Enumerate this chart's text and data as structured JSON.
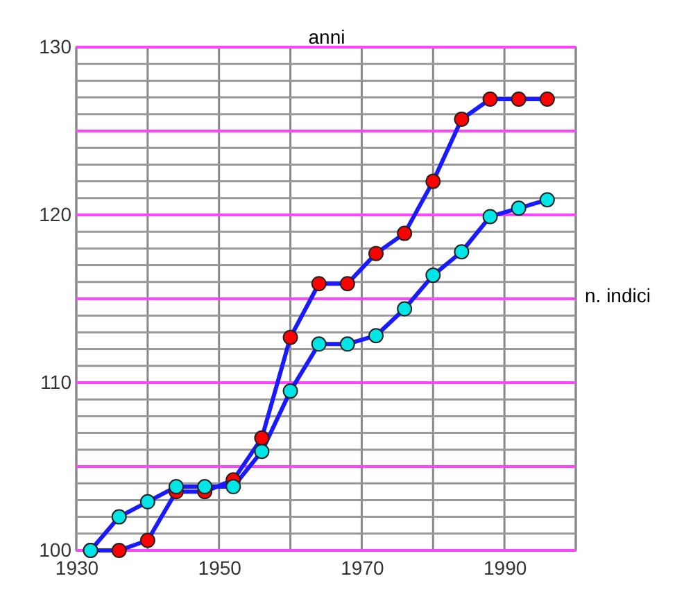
{
  "chart_data": {
    "type": "line",
    "xlabel": "anni",
    "ylabel": "n. indici",
    "x": [
      1932,
      1936,
      1940,
      1944,
      1948,
      1952,
      1956,
      1960,
      1964,
      1968,
      1972,
      1976,
      1980,
      1984,
      1988,
      1992,
      1996
    ],
    "series": [
      {
        "color": "#ff0000",
        "values": [
          100,
          100,
          100.6,
          103.5,
          103.5,
          104.2,
          106.7,
          112.7,
          115.9,
          115.9,
          117.7,
          118.9,
          122,
          125.7,
          126.9,
          126.9,
          126.9
        ]
      },
      {
        "color": "#00e5e5",
        "values": [
          100,
          102,
          102.9,
          103.8,
          103.8,
          103.8,
          105.9,
          109.5,
          112.3,
          112.3,
          112.8,
          114.4,
          116.4,
          117.8,
          119.9,
          120.4,
          120.9
        ]
      }
    ],
    "xlim": [
      1930,
      2000
    ],
    "xticks": [
      1930,
      {
        "value": 1940,
        "label": null
      },
      1950,
      {
        "value": 1960,
        "label": null
      },
      1970,
      {
        "value": 1980,
        "label": null
      },
      1990,
      {
        "value": 2000,
        "label": null
      }
    ],
    "ylim": [
      100,
      130
    ],
    "yticks": [
      100,
      {
        "value": 101,
        "label": null
      },
      {
        "value": 102,
        "label": null
      },
      {
        "value": 103,
        "label": null
      },
      {
        "value": 104,
        "label": null
      },
      {
        "value": 105,
        "label": null
      },
      {
        "value": 106,
        "label": null
      },
      {
        "value": 107,
        "label": null
      },
      {
        "value": 108,
        "label": null
      },
      {
        "value": 109,
        "label": null
      },
      110,
      {
        "value": 111,
        "label": null
      },
      {
        "value": 112,
        "label": null
      },
      {
        "value": 113,
        "label": null
      },
      {
        "value": 114,
        "label": null
      },
      {
        "value": 115,
        "label": null
      },
      {
        "value": 116,
        "label": null
      },
      {
        "value": 117,
        "label": null
      },
      {
        "value": 118,
        "label": null
      },
      {
        "value": 119,
        "label": null
      },
      120,
      {
        "value": 121,
        "label": null
      },
      {
        "value": 122,
        "label": null
      },
      {
        "value": 123,
        "label": null
      },
      {
        "value": 124,
        "label": null
      },
      {
        "value": 125,
        "label": null
      },
      {
        "value": 126,
        "label": null
      },
      {
        "value": 127,
        "label": null
      },
      {
        "value": 128,
        "label": null
      },
      {
        "value": 129,
        "label": null
      },
      130
    ],
    "grid": true,
    "marker": "circle",
    "line_style": "solid"
  }
}
